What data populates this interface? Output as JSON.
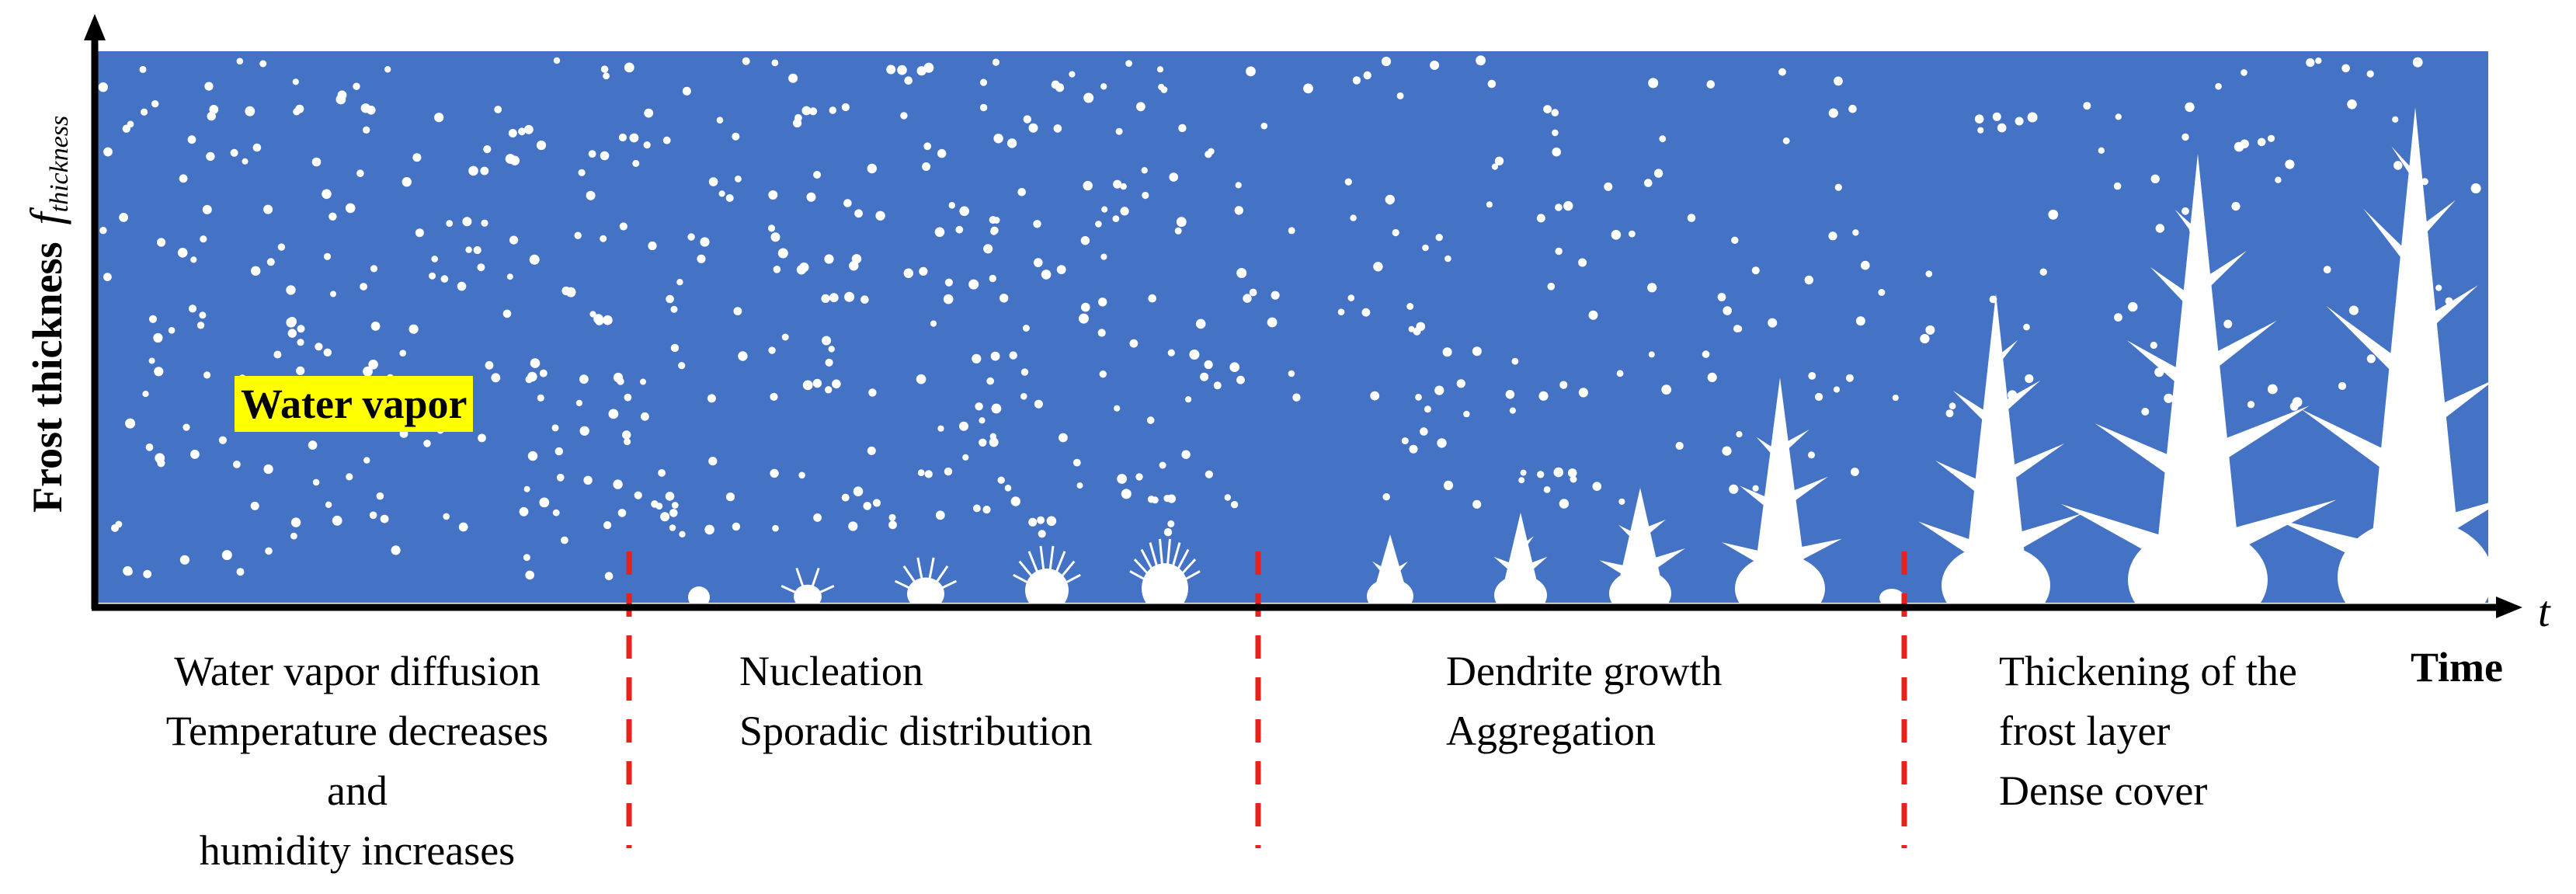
{
  "colors": {
    "background": "#4472c4",
    "particle": "#ffffff",
    "axis": "#000000",
    "divider": "#e8211a",
    "label_highlight": "#ffff00"
  },
  "axes": {
    "x_symbol": "t",
    "x_title": "Time",
    "y_title": "Frost thickness",
    "y_symbol": "f",
    "y_subscript": "thickness"
  },
  "vapor_label": "Water vapor",
  "stages": [
    {
      "lines": [
        "Water vapor diffusion",
        "Temperature decreases",
        "and",
        "humidity increases"
      ]
    },
    {
      "lines": [
        "Nucleation",
        "Sporadic distribution"
      ]
    },
    {
      "lines": [
        "Dendrite growth",
        "Aggregation"
      ]
    },
    {
      "lines": [
        "Thickening of the",
        "frost layer",
        "Dense cover"
      ]
    }
  ],
  "icons": {
    "particles": "water-vapor-droplet-icon",
    "nuclei": "frost-nucleus-icon",
    "dendrites": "frost-dendrite-icon"
  }
}
